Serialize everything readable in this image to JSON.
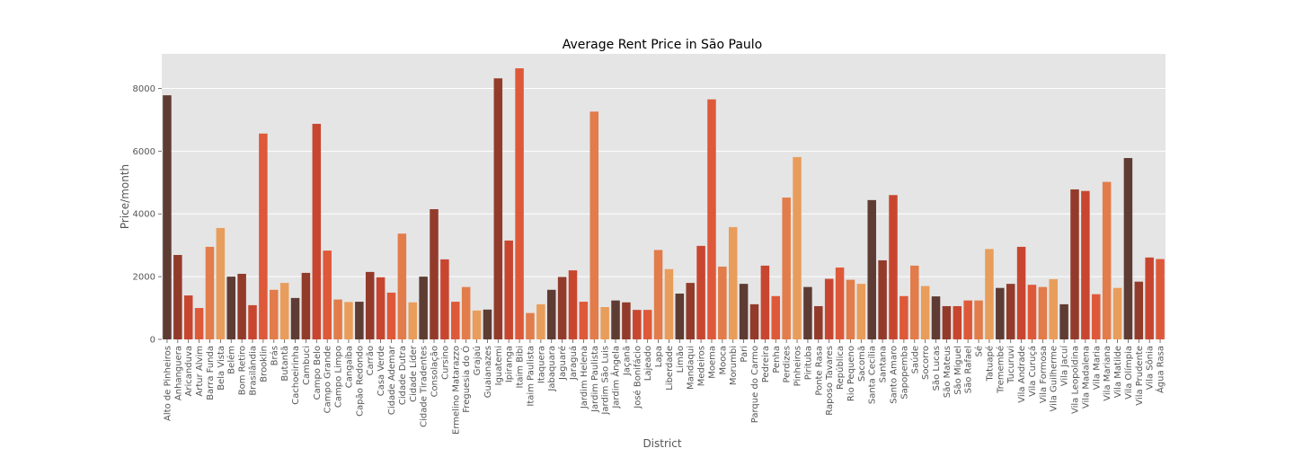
{
  "chart_data": {
    "type": "bar",
    "title": "Average Rent Price in São Paulo",
    "xlabel": "District",
    "ylabel": "Price/month",
    "ylim": [
      0,
      9100
    ],
    "yticks": [
      0,
      2000,
      4000,
      6000,
      8000
    ],
    "grid": true,
    "background": "#e5e5e5",
    "categories": [
      "Alto de Pinheiros",
      "Anhanguera",
      "Aricanduva",
      "Artur Alvim",
      "Barra Funda",
      "Bela Vista",
      "Belém",
      "Bom Retiro",
      "Brasilândia",
      "Brooklin",
      "Brás",
      "Butantã",
      "Cachoeirinha",
      "Cambuci",
      "Campo Belo",
      "Campo Grande",
      "Campo Limpo",
      "Cangaíba",
      "Capão Redondo",
      "Carrão",
      "Casa Verde",
      "Cidade Ademar",
      "Cidade Dutra",
      "Cidade Líder",
      "Cidade Tiradentes",
      "Consolação",
      "Cursino",
      "Ermelino Matarazzo",
      "Freguesia do Ó",
      "Grajaú",
      "Guaianazes",
      "Iguatemi",
      "Ipiranga",
      "Itaim Bibi",
      "Itaim Paulista",
      "Itaquera",
      "Jabaquara",
      "Jaguaré",
      "Jaraguá",
      "Jardim Helena",
      "Jardim Paulista",
      "Jardim São Luis",
      "Jardim Ângela",
      "Jaçanã",
      "José Bonifácio",
      "Lajeado",
      "Lapa",
      "Liberdade",
      "Limão",
      "Mandaqui",
      "Medeiros",
      "Moema",
      "Mooca",
      "Morumbi",
      "Pari",
      "Parque do Carmo",
      "Pedreira",
      "Penha",
      "Perdizes",
      "Pinheiros",
      "Pirituba",
      "Ponte Rasa",
      "Raposo Tavares",
      "República",
      "Rio Pequeno",
      "Sacomã",
      "Santa Cecília",
      "Santana",
      "Santo Amaro",
      "Sapopemba",
      "Saúde",
      "Socorro",
      "São Lucas",
      "São Mateus",
      "São Miguel",
      "São Rafael",
      "Sé",
      "Tatuapé",
      "Tremembé",
      "Tucuruvi",
      "Vila Andrade",
      "Vila Curuçá",
      "Vila Formosa",
      "Vila Guilherme",
      "Vila Jacuí",
      "Vila Leopoldina",
      "Vila Madalena",
      "Vila Maria",
      "Vila Mariana",
      "Vila Matilde",
      "Vila Olímpia",
      "Vila Prudente",
      "Vila Sônia",
      "Água Rasa"
    ],
    "values": [
      7780,
      2690,
      1400,
      1000,
      2950,
      3550,
      2000,
      2090,
      1090,
      6560,
      1580,
      1800,
      1320,
      2120,
      6870,
      2830,
      1270,
      1190,
      1200,
      2150,
      1980,
      1490,
      3370,
      1180,
      2000,
      4150,
      2550,
      1200,
      1670,
      920,
      950,
      8320,
      3150,
      8640,
      840,
      1120,
      1580,
      1990,
      2200,
      1200,
      7260,
      1030,
      1240,
      1180,
      940,
      940,
      2850,
      2240,
      1460,
      1800,
      2980,
      7650,
      2320,
      3580,
      1770,
      1120,
      2350,
      1380,
      4520,
      5810,
      1670,
      1060,
      1930,
      2290,
      1900,
      1770,
      4440,
      2520,
      4600,
      1380,
      2350,
      1700,
      1370,
      1060,
      1060,
      1240,
      1240,
      2880,
      1640,
      1770,
      2950,
      1740,
      1670,
      1920,
      1120,
      4780,
      4730,
      1440,
      5020,
      1640,
      5780,
      1840,
      2610,
      2560
    ],
    "palette": [
      "#5e3c33",
      "#933b2b",
      "#c84630",
      "#de5939",
      "#e27c4a",
      "#e99d5b"
    ]
  }
}
